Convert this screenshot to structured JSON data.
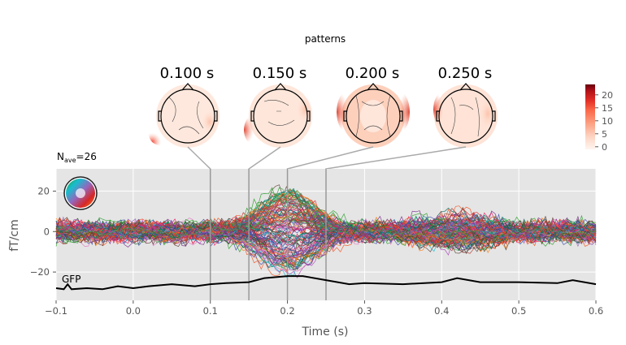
{
  "figure": {
    "suptitle": "patterns",
    "nave_label": "N",
    "nave_sub": "ave",
    "nave_value": "=26",
    "gfp_label": "GFP"
  },
  "colorbar": {
    "ticks": [
      0,
      5,
      10,
      15,
      20
    ],
    "range": [
      -1,
      24
    ],
    "colors": [
      "#fff5f0",
      "#fdd4c2",
      "#fca082",
      "#fb694a",
      "#e32f27",
      "#b11218",
      "#67000d"
    ]
  },
  "topomaps": [
    {
      "time_label": "0.100 s",
      "time": 0.1
    },
    {
      "time_label": "0.150 s",
      "time": 0.15
    },
    {
      "time_label": "0.200 s",
      "time": 0.2
    },
    {
      "time_label": "0.250 s",
      "time": 0.25
    }
  ],
  "chart_data": {
    "type": "line",
    "xlabel": "Time (s)",
    "ylabel": "fT/cm",
    "xlim": [
      -0.1,
      0.6
    ],
    "ylim": [
      -34,
      31
    ],
    "xticks": [
      -0.1,
      0.0,
      0.1,
      0.2,
      0.3,
      0.4,
      0.5,
      0.6
    ],
    "xtick_labels": [
      "−0.1",
      "0.0",
      "0.1",
      "0.2",
      "0.3",
      "0.4",
      "0.5",
      "0.6"
    ],
    "yticks": [
      -20,
      0,
      20
    ],
    "ytick_labels": [
      "−20",
      "0",
      "20"
    ],
    "grid": true,
    "background": "#e5e5e5",
    "vlines_at": [
      0.1,
      0.15,
      0.2,
      0.25
    ],
    "gfp": {
      "x": [
        -0.1,
        -0.09,
        -0.085,
        -0.08,
        -0.06,
        -0.04,
        -0.02,
        0.0,
        0.02,
        0.05,
        0.08,
        0.1,
        0.12,
        0.15,
        0.17,
        0.2,
        0.22,
        0.25,
        0.28,
        0.3,
        0.35,
        0.4,
        0.42,
        0.45,
        0.5,
        0.55,
        0.57,
        0.6
      ],
      "y": [
        -28,
        -28.5,
        -26,
        -28.5,
        -28,
        -28.5,
        -27,
        -28,
        -27,
        -26,
        -27,
        -26,
        -25.5,
        -25,
        -23,
        -22,
        -22,
        -24,
        -26,
        -25.5,
        -26,
        -25,
        -23,
        -25,
        -25,
        -25.5,
        -24,
        -26
      ]
    },
    "series_count": 120,
    "series_palette": [
      "#d62728",
      "#1f77b4",
      "#2ca02c",
      "#9467bd",
      "#8c564b",
      "#e377c2",
      "#ff7f0e",
      "#17becf",
      "#006d5b",
      "#7b2d8e",
      "#c0392b",
      "#1a5e20",
      "#3949ab",
      "#b03a2e",
      "#e91e63",
      "#00897b",
      "#5d4037",
      "#ab47bc",
      "#f4511e",
      "#43a047"
    ]
  }
}
